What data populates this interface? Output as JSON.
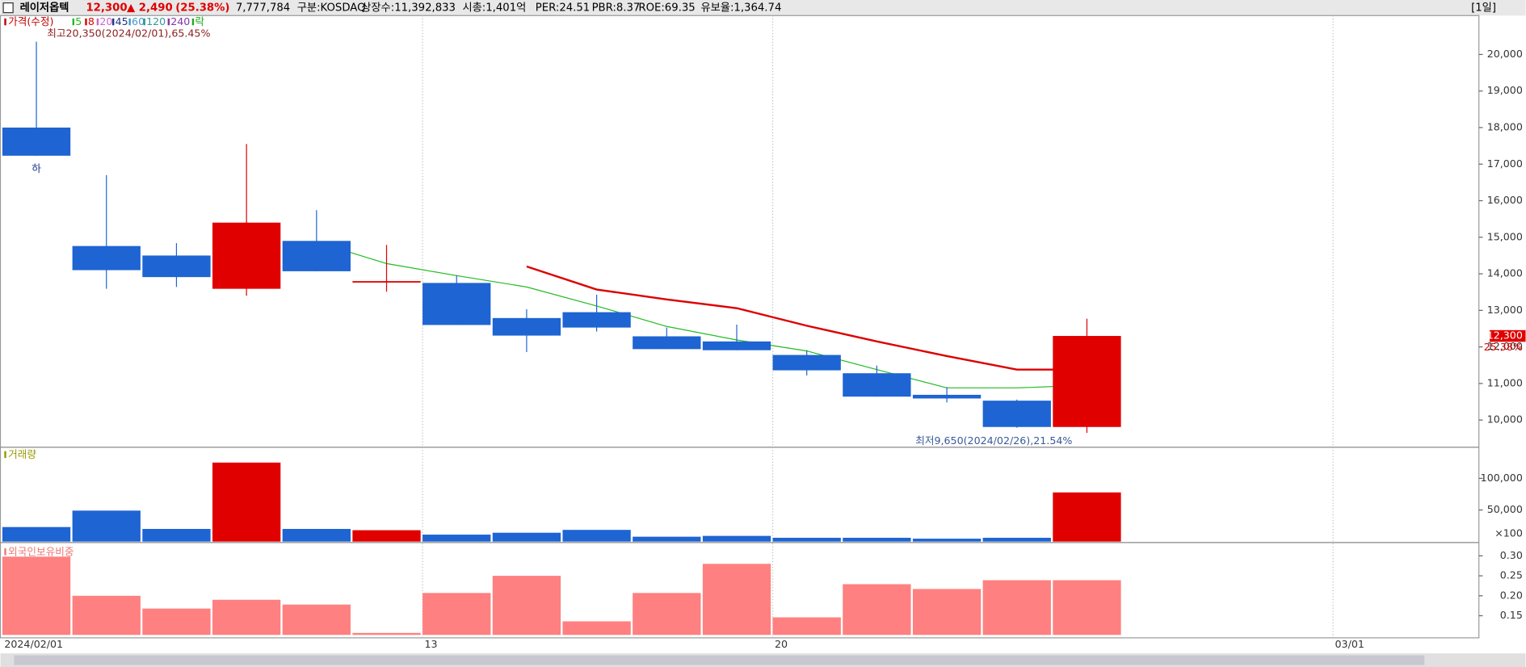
{
  "header": {
    "name": "레이저옵텍",
    "price": "12,300",
    "change": "▲ 2,490",
    "change_pct": "(25.38%)",
    "volume": "7,777,784",
    "market": "구분:KOSDAQ",
    "listed": "상장수:11,392,833",
    "mcap": "시총:1,401억",
    "per": "PER:24.51",
    "pbr": "PBR:8.37",
    "roe": "ROE:69.35",
    "reserve": "유보율:1,364.74",
    "period": "[1일]"
  },
  "chart_data": [
    {
      "type": "candlestick",
      "legend_label": "가격(수정)",
      "legend_color": "#c00000",
      "categories": [
        "2024/02/01",
        null,
        null,
        null,
        null,
        null,
        "13",
        null,
        null,
        null,
        null,
        "20",
        null,
        null,
        null,
        null,
        null,
        null,
        null,
        "03/01"
      ],
      "open": [
        18000,
        14760,
        14500,
        13590,
        14900,
        13800,
        13750,
        12790,
        12950,
        12290,
        12150,
        11780,
        11280,
        10690,
        10530,
        9810,
        null,
        null,
        null,
        null
      ],
      "high": [
        20350,
        16700,
        14840,
        17550,
        15740,
        14790,
        13960,
        13030,
        13430,
        12530,
        12610,
        11910,
        11490,
        10900,
        10560,
        12770,
        null,
        null,
        null,
        null
      ],
      "low": [
        17230,
        13590,
        13640,
        13400,
        14070,
        13510,
        12600,
        11860,
        12420,
        11940,
        11910,
        11220,
        10640,
        10480,
        9790,
        9650,
        null,
        null,
        null,
        null
      ],
      "close": [
        17230,
        14100,
        13910,
        15400,
        14070,
        13800,
        12600,
        12310,
        12530,
        11940,
        11910,
        11360,
        10640,
        10590,
        9810,
        12300,
        null,
        null,
        null,
        null
      ],
      "up_color": "#e00000",
      "down_color": "#1e64d2",
      "series": [
        {
          "name": "5",
          "color": "#22bb22",
          "values": [
            null,
            null,
            null,
            null,
            14870,
            14280,
            13950,
            13640,
            13120,
            12560,
            12190,
            11890,
            11380,
            10880,
            10880,
            10950,
            null,
            null,
            null,
            null
          ]
        },
        {
          "name": "8",
          "color": "#dd0000",
          "values": [
            null,
            null,
            null,
            null,
            null,
            null,
            null,
            14200,
            13570,
            13300,
            13060,
            12580,
            12150,
            11750,
            11380,
            11380,
            null,
            null,
            null,
            null
          ]
        },
        {
          "name": "20",
          "color": "#cc66cc"
        },
        {
          "name": "45",
          "color": "#223388"
        },
        {
          "name": "60",
          "color": "#4499cc"
        },
        {
          "name": "120",
          "color": "#339999"
        },
        {
          "name": "240",
          "color": "#8833aa"
        },
        {
          "name": "락",
          "color": "#22aa22"
        }
      ],
      "ylim": [
        9282,
        21064
      ],
      "yticks": [
        {
          "value": 10000,
          "label": "10,000"
        },
        {
          "value": 11000,
          "label": "11,000"
        },
        {
          "value": 12000,
          "label": "12,000"
        },
        {
          "value": 13000,
          "label": "13,000"
        },
        {
          "value": 14000,
          "label": "14,000"
        },
        {
          "value": 15000,
          "label": "15,000"
        },
        {
          "value": 16000,
          "label": "16,000"
        },
        {
          "value": 17000,
          "label": "17,000"
        },
        {
          "value": 18000,
          "label": "18,000"
        },
        {
          "value": 19000,
          "label": "19,000"
        },
        {
          "value": 20000,
          "label": "20,000"
        }
      ],
      "high_label": "최고20,350(2024/02/01),65.45%",
      "low_label": "최저9,650(2024/02/26),21.54%",
      "high_marker": "하",
      "last_label": "12,300",
      "last_pct": "25.38%"
    },
    {
      "type": "bar",
      "legend_label": "거래량",
      "legend_color": "#999900",
      "values": [
        23000,
        49000,
        20000,
        125000,
        20000,
        18000,
        11000,
        14000,
        18500,
        7700,
        9000,
        6000,
        6000,
        4600,
        6000,
        77778,
        null,
        null,
        null,
        null
      ],
      "colors": [
        "#1e64d2",
        "#1e64d2",
        "#1e64d2",
        "#e00000",
        "#1e64d2",
        "#e00000",
        "#1e64d2",
        "#1e64d2",
        "#1e64d2",
        "#1e64d2",
        "#1e64d2",
        "#1e64d2",
        "#1e64d2",
        "#1e64d2",
        "#1e64d2",
        "#e00000",
        null,
        null,
        null,
        null
      ],
      "ylim": [
        0,
        147700
      ],
      "yticks": [
        {
          "value": 50000,
          "label": "50,000"
        },
        {
          "value": 100000,
          "label": "100,000"
        }
      ],
      "unit": "×100"
    },
    {
      "type": "bar",
      "legend_label": "외국인보유비중",
      "legend_color": "#ee7777",
      "values": [
        0.298,
        0.2,
        0.168,
        0.19,
        0.178,
        0.107,
        0.207,
        0.25,
        0.136,
        0.207,
        0.28,
        0.146,
        0.229,
        0.217,
        0.239,
        0.239,
        null,
        null,
        null,
        null
      ],
      "color": "#ff8080",
      "ylim": [
        0.102,
        0.326
      ],
      "yticks": [
        {
          "value": 0.15,
          "label": "0.15"
        },
        {
          "value": 0.2,
          "label": "0.20"
        },
        {
          "value": 0.25,
          "label": "0.25"
        },
        {
          "value": 0.3,
          "label": "0.30"
        }
      ]
    }
  ]
}
